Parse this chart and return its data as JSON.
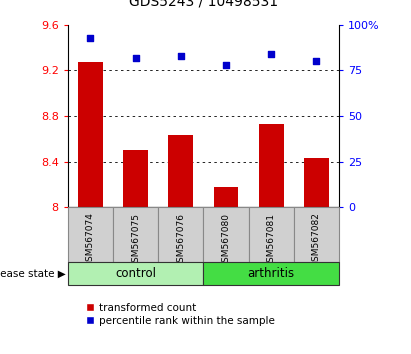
{
  "title": "GDS5243 / 10498531",
  "samples": [
    "GSM567074",
    "GSM567075",
    "GSM567076",
    "GSM567080",
    "GSM567081",
    "GSM567082"
  ],
  "bar_values": [
    9.27,
    8.5,
    8.63,
    8.18,
    8.73,
    8.43
  ],
  "dot_values": [
    93,
    82,
    83,
    78,
    84,
    80
  ],
  "ylim_left": [
    8.0,
    9.6
  ],
  "ylim_right": [
    0,
    100
  ],
  "yticks_left": [
    8.0,
    8.4,
    8.8,
    9.2,
    9.6
  ],
  "ytick_labels_left": [
    "8",
    "8.4",
    "8.8",
    "9.2",
    "9.6"
  ],
  "yticks_right": [
    0,
    25,
    50,
    75,
    100
  ],
  "ytick_labels_right": [
    "0",
    "25",
    "50",
    "75",
    "100%"
  ],
  "bar_color": "#cc0000",
  "dot_color": "#0000cc",
  "bar_bottom": 8.0,
  "grid_lines": [
    8.4,
    8.8,
    9.2
  ],
  "control_color": "#b2f0b2",
  "arthritis_color": "#44dd44",
  "sample_box_color": "#d0d0d0",
  "groups": [
    {
      "label": "control",
      "indices": [
        0,
        1,
        2
      ],
      "color": "#b2f0b2"
    },
    {
      "label": "arthritis",
      "indices": [
        3,
        4,
        5
      ],
      "color": "#44dd44"
    }
  ],
  "disease_state_label": "disease state",
  "legend_items": [
    {
      "label": "transformed count",
      "color": "#cc0000"
    },
    {
      "label": "percentile rank within the sample",
      "color": "#0000cc"
    }
  ]
}
